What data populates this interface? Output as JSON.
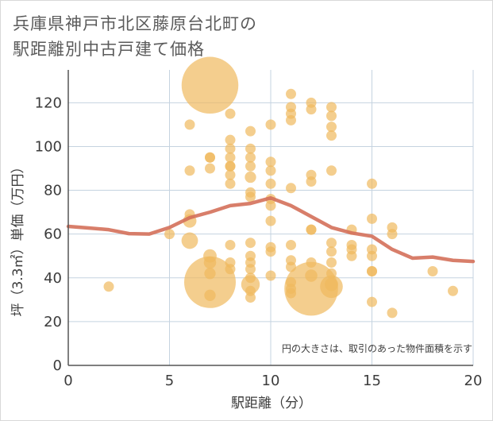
{
  "title_line1": "兵庫県神戸市北区藤原台北町の",
  "title_line2": "駅距離別中古戸建て価格",
  "chart_data": {
    "type": "scatter",
    "title": "兵庫県神戸市北区藤原台北町の駅距離別中古戸建て価格",
    "xlabel": "駅距離（分）",
    "ylabel": "坪（3.3㎡）単価（万円）",
    "xlim": [
      0,
      20
    ],
    "ylim": [
      0,
      135
    ],
    "xticks": [
      0,
      5,
      10,
      15,
      20
    ],
    "yticks": [
      0,
      20,
      40,
      60,
      80,
      100,
      120
    ],
    "grid": true,
    "note": "円の大きさは、取引のあった物件面積を示す",
    "colors": {
      "bubble": "#f0b95e",
      "line": "#d4705a",
      "grid": "#c5d3e0",
      "axis": "#555555"
    },
    "points": [
      {
        "x": 2,
        "y": 36,
        "s": 1
      },
      {
        "x": 5,
        "y": 60,
        "s": 1
      },
      {
        "x": 6,
        "y": 110,
        "s": 1
      },
      {
        "x": 6,
        "y": 89,
        "s": 1
      },
      {
        "x": 6,
        "y": 69,
        "s": 1
      },
      {
        "x": 6,
        "y": 66,
        "s": 1.3
      },
      {
        "x": 6,
        "y": 57,
        "s": 1.6
      },
      {
        "x": 7,
        "y": 128,
        "s": 5.5
      },
      {
        "x": 7,
        "y": 95,
        "s": 1
      },
      {
        "x": 7,
        "y": 95,
        "s": 1
      },
      {
        "x": 7,
        "y": 90,
        "s": 1
      },
      {
        "x": 7,
        "y": 50,
        "s": 1.3
      },
      {
        "x": 7,
        "y": 47,
        "s": 1.2
      },
      {
        "x": 7,
        "y": 42,
        "s": 1.1
      },
      {
        "x": 7,
        "y": 38,
        "s": 5
      },
      {
        "x": 7,
        "y": 32,
        "s": 1.1
      },
      {
        "x": 8,
        "y": 115,
        "s": 1
      },
      {
        "x": 8,
        "y": 103,
        "s": 1
      },
      {
        "x": 8,
        "y": 99,
        "s": 1
      },
      {
        "x": 8,
        "y": 95,
        "s": 1
      },
      {
        "x": 8,
        "y": 91,
        "s": 1
      },
      {
        "x": 8,
        "y": 91,
        "s": 1
      },
      {
        "x": 8,
        "y": 87,
        "s": 1
      },
      {
        "x": 8,
        "y": 83,
        "s": 1
      },
      {
        "x": 8,
        "y": 55,
        "s": 1
      },
      {
        "x": 8,
        "y": 47,
        "s": 1
      },
      {
        "x": 8,
        "y": 44,
        "s": 1
      },
      {
        "x": 9,
        "y": 107,
        "s": 1
      },
      {
        "x": 9,
        "y": 99,
        "s": 1
      },
      {
        "x": 9,
        "y": 95,
        "s": 1
      },
      {
        "x": 9,
        "y": 91,
        "s": 1
      },
      {
        "x": 9,
        "y": 86,
        "s": 1.1
      },
      {
        "x": 9,
        "y": 79,
        "s": 1
      },
      {
        "x": 9,
        "y": 77,
        "s": 1
      },
      {
        "x": 9,
        "y": 56,
        "s": 1
      },
      {
        "x": 9,
        "y": 50,
        "s": 1
      },
      {
        "x": 9,
        "y": 47,
        "s": 1
      },
      {
        "x": 9,
        "y": 44,
        "s": 1
      },
      {
        "x": 9,
        "y": 40,
        "s": 1
      },
      {
        "x": 9,
        "y": 37,
        "s": 1.8
      },
      {
        "x": 9,
        "y": 34,
        "s": 1
      },
      {
        "x": 9,
        "y": 31,
        "s": 1
      },
      {
        "x": 10,
        "y": 110,
        "s": 1
      },
      {
        "x": 10,
        "y": 93,
        "s": 1
      },
      {
        "x": 10,
        "y": 89,
        "s": 1
      },
      {
        "x": 10,
        "y": 83,
        "s": 1
      },
      {
        "x": 10,
        "y": 76,
        "s": 1
      },
      {
        "x": 10,
        "y": 73,
        "s": 1
      },
      {
        "x": 10,
        "y": 66,
        "s": 1
      },
      {
        "x": 10,
        "y": 54,
        "s": 1
      },
      {
        "x": 10,
        "y": 52,
        "s": 1
      },
      {
        "x": 10,
        "y": 41,
        "s": 1
      },
      {
        "x": 11,
        "y": 124,
        "s": 1
      },
      {
        "x": 11,
        "y": 118,
        "s": 1
      },
      {
        "x": 11,
        "y": 115,
        "s": 1
      },
      {
        "x": 11,
        "y": 112,
        "s": 1
      },
      {
        "x": 11,
        "y": 81,
        "s": 1
      },
      {
        "x": 11,
        "y": 55,
        "s": 1
      },
      {
        "x": 11,
        "y": 48,
        "s": 1
      },
      {
        "x": 11,
        "y": 45,
        "s": 1
      },
      {
        "x": 11,
        "y": 38,
        "s": 1
      },
      {
        "x": 11,
        "y": 35,
        "s": 1
      },
      {
        "x": 11,
        "y": 33,
        "s": 1
      },
      {
        "x": 12,
        "y": 120,
        "s": 1
      },
      {
        "x": 12,
        "y": 117,
        "s": 1
      },
      {
        "x": 12,
        "y": 87,
        "s": 1
      },
      {
        "x": 12,
        "y": 84,
        "s": 1
      },
      {
        "x": 12,
        "y": 62,
        "s": 1
      },
      {
        "x": 12,
        "y": 62,
        "s": 1
      },
      {
        "x": 12,
        "y": 47,
        "s": 1
      },
      {
        "x": 12,
        "y": 41,
        "s": 1.2
      },
      {
        "x": 12,
        "y": 35,
        "s": 5.2
      },
      {
        "x": 13,
        "y": 118,
        "s": 1
      },
      {
        "x": 13,
        "y": 114,
        "s": 1
      },
      {
        "x": 13,
        "y": 109,
        "s": 1
      },
      {
        "x": 13,
        "y": 105,
        "s": 1
      },
      {
        "x": 13,
        "y": 89,
        "s": 1
      },
      {
        "x": 13,
        "y": 56,
        "s": 1
      },
      {
        "x": 13,
        "y": 52,
        "s": 1
      },
      {
        "x": 13,
        "y": 47,
        "s": 1
      },
      {
        "x": 13,
        "y": 42,
        "s": 1
      },
      {
        "x": 13,
        "y": 37,
        "s": 1.3
      },
      {
        "x": 13,
        "y": 36,
        "s": 2.2
      },
      {
        "x": 14,
        "y": 62,
        "s": 1
      },
      {
        "x": 14,
        "y": 55,
        "s": 1
      },
      {
        "x": 14,
        "y": 53,
        "s": 1
      },
      {
        "x": 14,
        "y": 50,
        "s": 1
      },
      {
        "x": 15,
        "y": 83,
        "s": 1
      },
      {
        "x": 15,
        "y": 67,
        "s": 1
      },
      {
        "x": 15,
        "y": 53,
        "s": 1
      },
      {
        "x": 15,
        "y": 50,
        "s": 1
      },
      {
        "x": 15,
        "y": 43,
        "s": 1
      },
      {
        "x": 15,
        "y": 43,
        "s": 1
      },
      {
        "x": 15,
        "y": 29,
        "s": 1
      },
      {
        "x": 16,
        "y": 63,
        "s": 1
      },
      {
        "x": 16,
        "y": 60,
        "s": 1
      },
      {
        "x": 16,
        "y": 24,
        "s": 1
      },
      {
        "x": 18,
        "y": 43,
        "s": 1
      },
      {
        "x": 19,
        "y": 34,
        "s": 1
      }
    ],
    "trend_line": {
      "x": [
        0,
        1,
        2,
        3,
        4,
        5,
        6,
        7,
        8,
        9,
        10,
        11,
        12,
        13,
        14,
        15,
        16,
        17,
        18,
        19,
        20
      ],
      "y": [
        63.5,
        62.8,
        62,
        60.2,
        60,
        63,
        67.5,
        70,
        73,
        74,
        76.5,
        73,
        68,
        63,
        60.5,
        59,
        53,
        49,
        49.5,
        48,
        47.5
      ]
    }
  }
}
